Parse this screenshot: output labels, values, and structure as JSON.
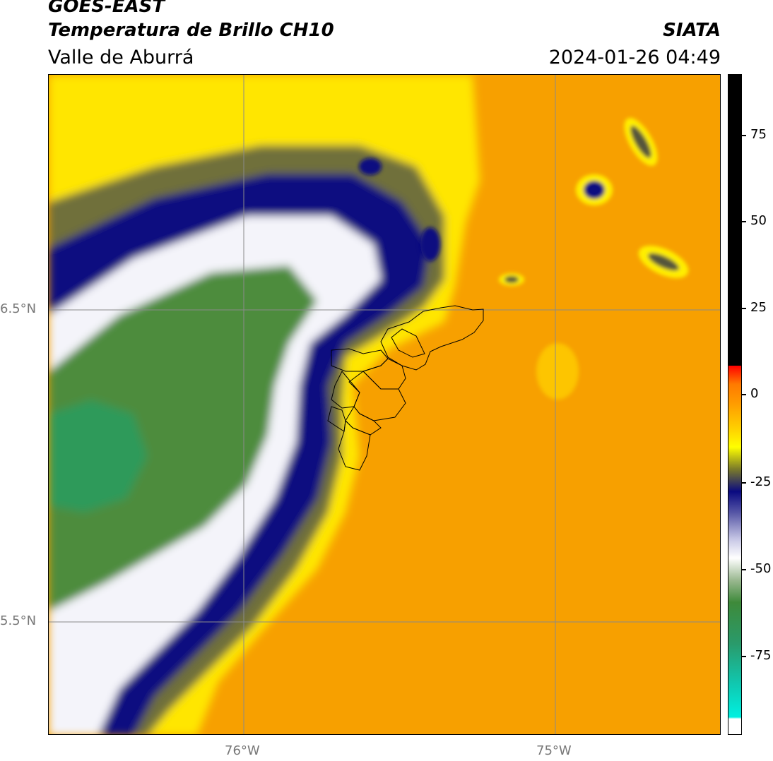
{
  "header": {
    "source": "GOES-EAST",
    "title": "Temperatura de Brillo CH10",
    "region": "Valle de Aburrá",
    "organization": "SIATA",
    "timestamp": "2024-01-26 04:49"
  },
  "map": {
    "lat_labels": [
      "6.5°N",
      "5.5°N"
    ],
    "lon_labels": [
      "76°W",
      "75°W"
    ],
    "colors": {
      "warm_orange": "#f7a000",
      "yellow": "#ffff00",
      "navy": "#0a0a80",
      "white": "#ffffff",
      "green": "#3e8a3a",
      "teal": "#2a9a6a"
    }
  },
  "colorbar": {
    "ticks": [
      "75",
      "50",
      "25",
      "0",
      "-25",
      "-50",
      "-75"
    ],
    "colors": [
      "#000000",
      "#ff0000",
      "#ff8c00",
      "#ffff00",
      "#0a0a80",
      "#ffffff",
      "#3e8a3a",
      "#00e5d0"
    ]
  }
}
